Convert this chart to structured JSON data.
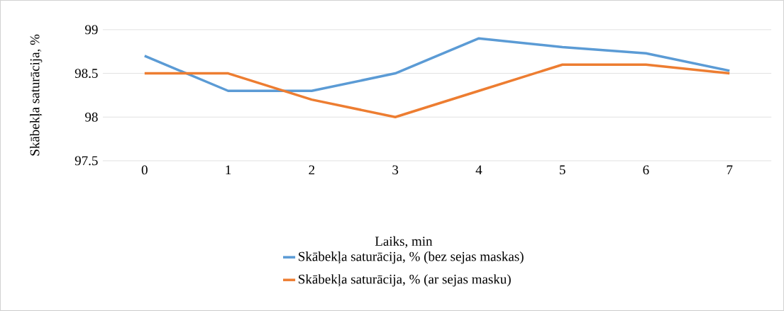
{
  "chart_data": {
    "type": "line",
    "xlabel": "Laiks, min",
    "ylabel": "Skābekļa saturācija, %",
    "categories": [
      "0",
      "1",
      "2",
      "3",
      "4",
      "5",
      "6",
      "7"
    ],
    "series": [
      {
        "name": "Skābekļa saturācija, % (bez sejas maskas)",
        "color": "#5b9bd5",
        "values": [
          98.7,
          98.3,
          98.3,
          98.5,
          98.9,
          98.8,
          98.73,
          98.53
        ]
      },
      {
        "name": "Skābekļa saturācija, %  (ar sejas masku)",
        "color": "#ed7d31",
        "values": [
          98.5,
          98.5,
          98.2,
          98.0,
          98.3,
          98.6,
          98.6,
          98.5
        ]
      }
    ],
    "ylim": [
      97.5,
      99
    ],
    "yticks": [
      97.5,
      98,
      98.5,
      99
    ],
    "grid": "y",
    "legend": "bottom",
    "marker": "none",
    "line_style": "solid"
  }
}
